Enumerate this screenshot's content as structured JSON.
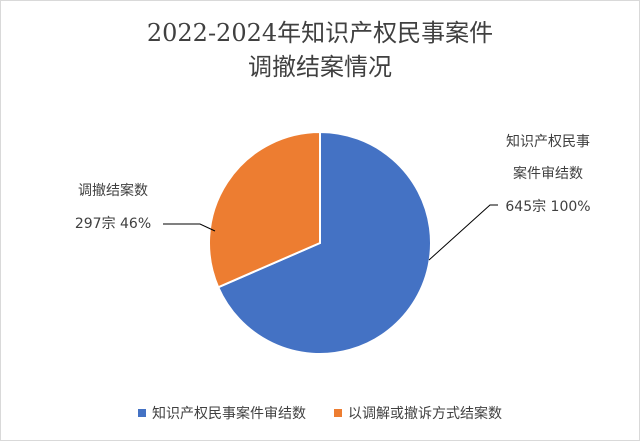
{
  "chart_data": {
    "type": "pie",
    "title_line1": "2022-2024年知识产权民事案件",
    "title_line2": "调撤结案情况",
    "slices": [
      {
        "name": "知识产权民事案件审结数",
        "value": 645,
        "color": "#4472C4",
        "label_line1": "知识产权民事",
        "label_line2": "案件审结数",
        "label_line3": "645宗 100%"
      },
      {
        "name": "以调解或撤诉方式结案数",
        "value": 297,
        "color": "#ED7D31",
        "label_line1": "调撤结案数",
        "label_line2": "297宗 46%"
      }
    ],
    "legend_position": "bottom"
  }
}
